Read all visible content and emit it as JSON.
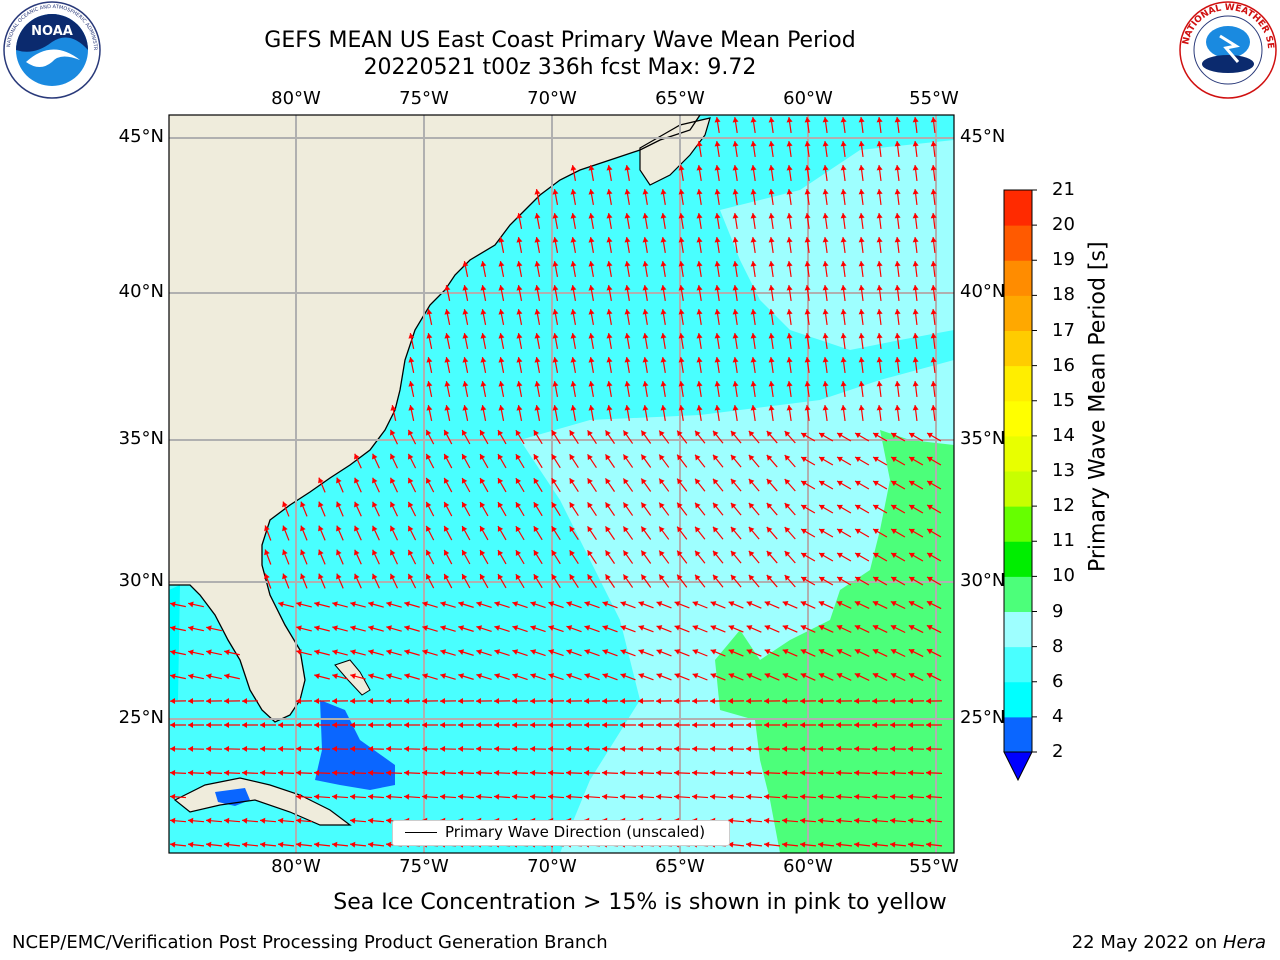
{
  "title": {
    "line1": "GEFS MEAN US East Coast Primary Wave Mean Period",
    "line2": "20220521 t00z 336h fcst   Max: 9.72"
  },
  "logos": {
    "left": "NOAA",
    "left_ring_text": "NATIONAL OCEANIC AND ATMOSPHERIC ADMINISTRATION · U.S. DEPARTMENT OF COMMERCE",
    "right_ring_text": "NATIONAL WEATHER SERVICE"
  },
  "map": {
    "lon_labels": [
      "80°W",
      "75°W",
      "70°W",
      "65°W",
      "60°W",
      "55°W"
    ],
    "lat_labels": [
      "45°N",
      "40°N",
      "35°N",
      "30°N",
      "25°N"
    ],
    "legend": "Primary Wave Direction (unscaled)",
    "arrow_color": "#ff0000",
    "land_color": "#efecdc"
  },
  "colorbar": {
    "label": "Primary Wave Mean Period [s]",
    "ticks": [
      "2",
      "4",
      "6",
      "8",
      "9",
      "10",
      "11",
      "12",
      "13",
      "14",
      "15",
      "16",
      "17",
      "18",
      "19",
      "20",
      "21"
    ],
    "colors": [
      "#0a66ff",
      "#00ffff",
      "#49ffff",
      "#9effff",
      "#4cff7a",
      "#00ee00",
      "#66ff00",
      "#c8ff00",
      "#e8ff00",
      "#ffff00",
      "#ffee00",
      "#ffcc00",
      "#ffa800",
      "#ff8c00",
      "#ff5a00",
      "#ff2a00",
      "#ff0000"
    ],
    "under_color": "#0000ff"
  },
  "notes": {
    "sea_ice": "Sea Ice Concentration > 15% is shown in pink to yellow",
    "footer_left": "NCEP/EMC/Verification Post Processing Product Generation Branch",
    "footer_date": "22 May 2022 on ",
    "footer_host": "Hera"
  }
}
